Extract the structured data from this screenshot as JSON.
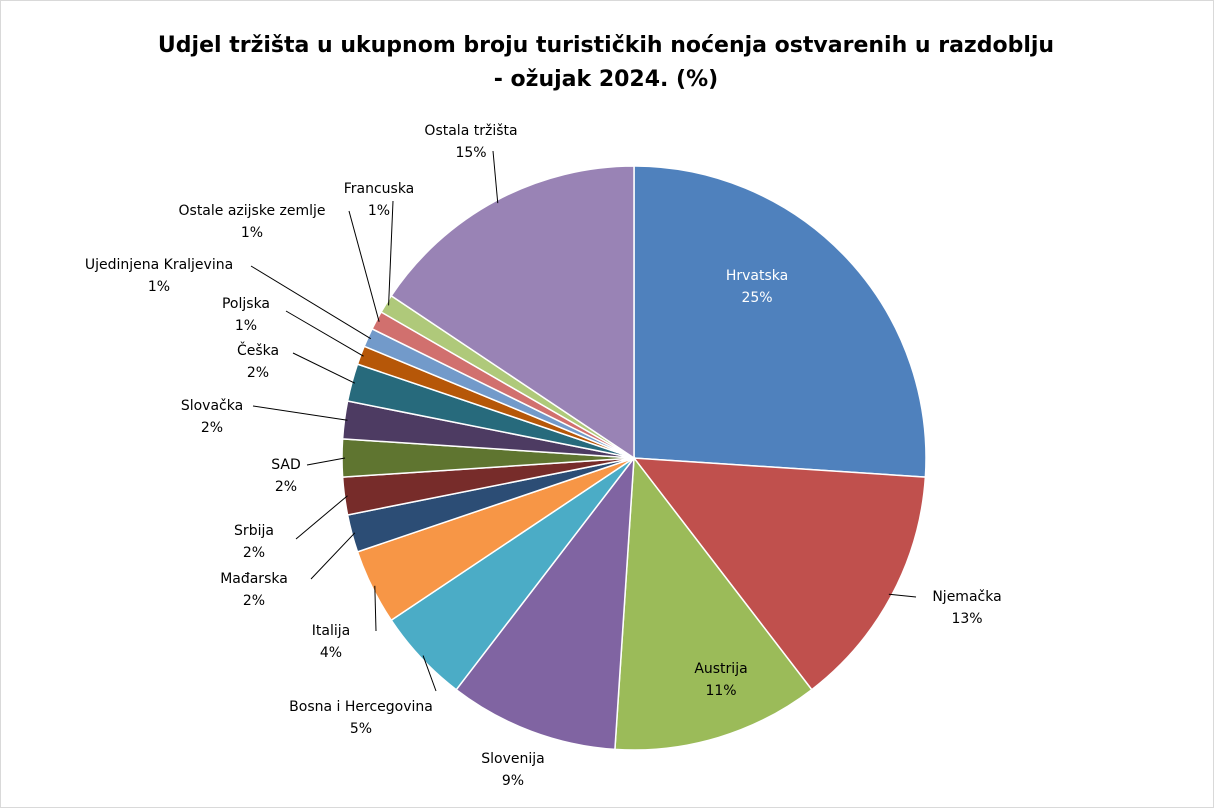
{
  "chart_data": {
    "type": "pie",
    "title": "Udjel tržišta u ukupnom broju turističkih noćenja ostvarenih u razdoblju - ožujak 2024. (%)",
    "categories": [
      "Hrvatska",
      "Njemačka",
      "Austrija",
      "Slovenija",
      "Bosna i Hercegovina",
      "Italija",
      "Mađarska",
      "Srbija",
      "SAD",
      "Slovačka",
      "Češka",
      "Poljska",
      "Ujedinjena Kraljevina",
      "Ostale azijske zemlje",
      "Francuska",
      "Ostala tržišta"
    ],
    "values": [
      25,
      13,
      11,
      9,
      5,
      4,
      2,
      2,
      2,
      2,
      2,
      1,
      1,
      1,
      1,
      15
    ],
    "value_labels": [
      "25%",
      "13%",
      "11%",
      "9%",
      "5%",
      "4%",
      "2%",
      "2%",
      "2%",
      "2%",
      "2%",
      "1%",
      "1%",
      "1%",
      "1%",
      "15%"
    ],
    "colors": [
      "#4f81bd",
      "#c0504d",
      "#9bbb59",
      "#8064a2",
      "#4bacc6",
      "#f79646",
      "#2c4d75",
      "#772c2a",
      "#5f7530",
      "#4d3b62",
      "#276a7c",
      "#b65708",
      "#729aca",
      "#d1706e",
      "#afc97a",
      "#9983b5"
    ]
  }
}
